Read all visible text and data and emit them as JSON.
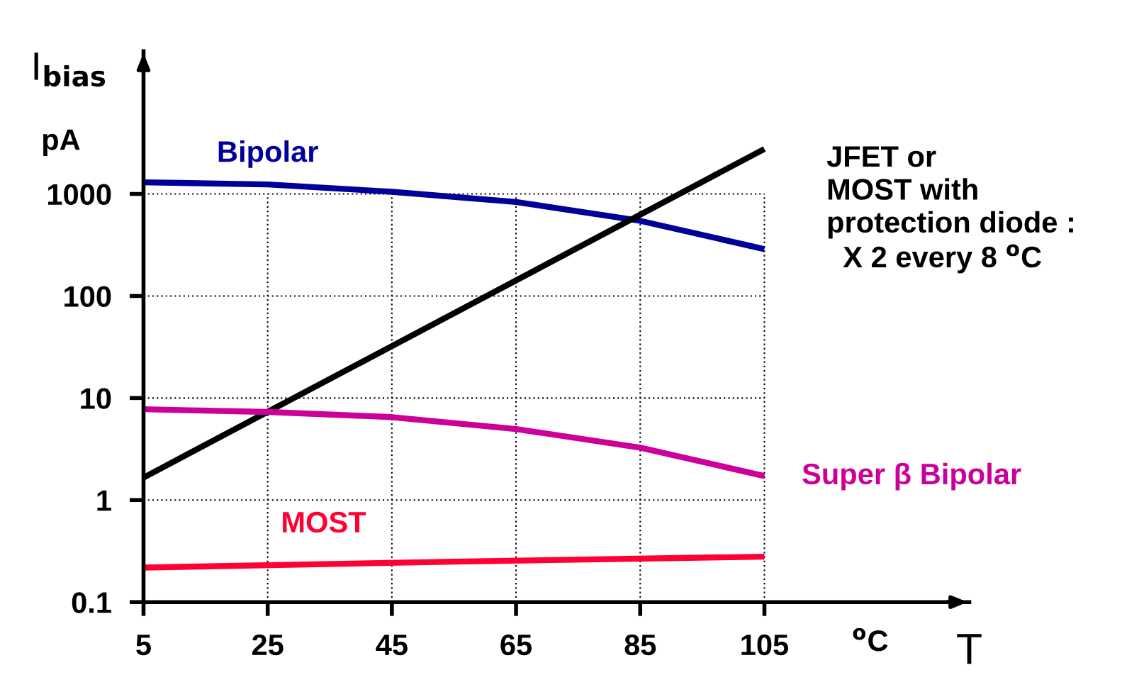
{
  "chart_data": {
    "type": "line",
    "xlabel": "T",
    "ylabel": "I$_{bias}$",
    "annotations": [
      "pA",
      "$^{o}$C"
    ],
    "log": "y",
    "xlim": [
      5,
      138
    ],
    "ylim": [
      0.1,
      25000
    ],
    "xticks": [
      5,
      25,
      45,
      65,
      85,
      105
    ],
    "yticks": [
      0.1,
      1,
      10,
      100,
      1000
    ],
    "grid": true,
    "legend": false,
    "marker": "none",
    "line_style": "solid",
    "series": [
      {
        "name": "Bipolar",
        "color": "#000099",
        "x": [
          5,
          25,
          45,
          65,
          85,
          105
        ],
        "values": [
          1300,
          1240,
          1050,
          835,
          545,
          288
        ]
      },
      {
        "name": "JFET or\nMOST with\nprotection diode :\n  X 2 every 8 $^{o}$C",
        "color": "#000000",
        "x": [
          5,
          105
        ],
        "values": [
          1.66,
          2760
        ]
      },
      {
        "name": "Super β Bipolar",
        "color": "#cc0099",
        "x": [
          5,
          25,
          45,
          65,
          85,
          105
        ],
        "values": [
          7.76,
          7.3,
          6.5,
          4.97,
          3.26,
          1.72
        ]
      },
      {
        "name": "MOST",
        "color": "#ff0033",
        "x": [
          5,
          55,
          105
        ],
        "values": [
          0.218,
          0.249,
          0.279
        ]
      }
    ]
  }
}
